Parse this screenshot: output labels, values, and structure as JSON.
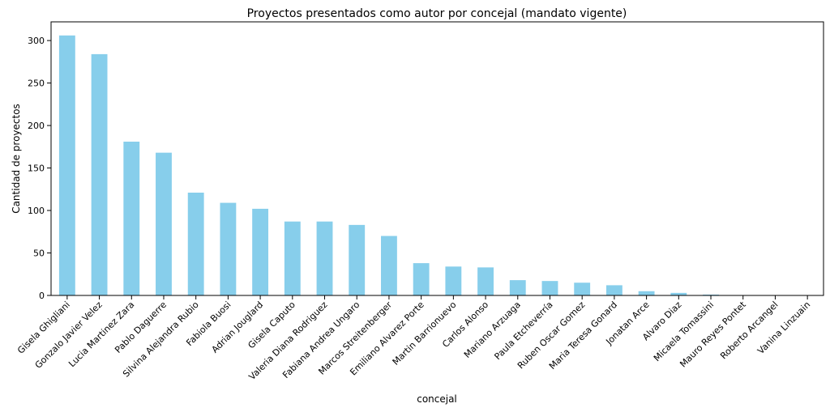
{
  "chart_data": {
    "type": "bar",
    "title": "Proyectos presentados como autor por concejal (mandato vigente)",
    "xlabel": "concejal",
    "ylabel": "Cantidad de proyectos",
    "ylim": [
      0,
      322
    ],
    "yticks": [
      0,
      50,
      100,
      150,
      200,
      250,
      300
    ],
    "grid": false,
    "legend": "none",
    "bar_color": "#87ceeb",
    "categories": [
      "Gisela Ghigliani",
      "Gonzalo Javier Velez",
      "Lucia Martinez Zara",
      "Pablo Daguerre",
      "Silvina Alejandra Rubio",
      "Fabiola Buosi",
      "Adrian Jouglard",
      "Gisela Caputo",
      "Valeria Diana Rodriguez",
      "Fabiana Andrea Ungaro",
      "Marcos Streitenberger",
      "Emiliano Alvarez Porte",
      "Martin Barrionuevo",
      "Carlos Alonso",
      "Mariano Arzuaga",
      "Paula Etcheverría",
      "Ruben Oscar Gomez",
      "Maria Teresa Gonard",
      "Jonatan Arce",
      "Alvaro Diaz",
      "Micaela Tomassini",
      "Mauro Reyes Pontet",
      "Roberto Arcangel",
      "Vanina Linzuain"
    ],
    "values": [
      306,
      284,
      181,
      168,
      121,
      109,
      102,
      87,
      87,
      83,
      70,
      38,
      34,
      33,
      18,
      17,
      15,
      12,
      5,
      3,
      1,
      0,
      0,
      0
    ]
  }
}
